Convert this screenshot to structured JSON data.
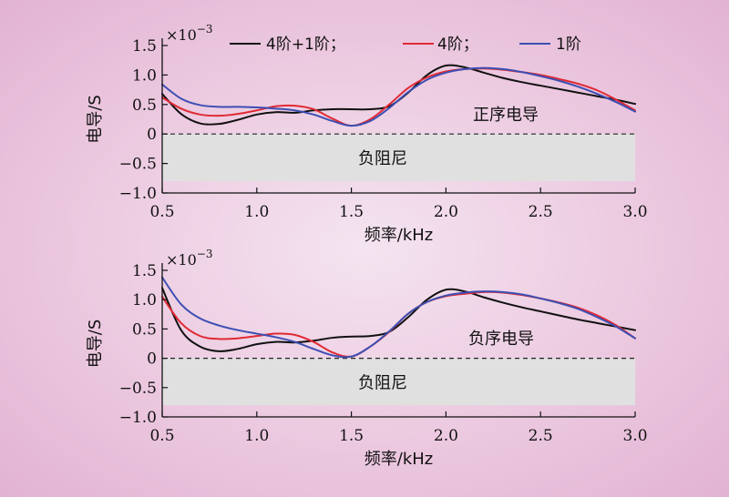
{
  "chart_data": [
    {
      "type": "line",
      "xlabel": "频率/kHz",
      "ylabel": "电导/S",
      "xlim": [
        0.5,
        3.0
      ],
      "ylim": [
        -1.0,
        1.5
      ],
      "x_ticks": [
        "0.5",
        "1.0",
        "1.5",
        "2.0",
        "2.5",
        "3.0"
      ],
      "y_ticks": [
        "1.5",
        "1.0",
        "0.5",
        "0",
        "−0.5",
        "−1.0"
      ],
      "y_multiplier": "×10",
      "y_multiplier_exp": "−3",
      "positive_label": "正序电导",
      "negative_region_label": "负阻尼",
      "negative_region": [
        -0.8,
        0
      ],
      "zero_line": true,
      "series": [
        {
          "name": "4阶+1阶；",
          "color": "#111111",
          "x": [
            0.5,
            0.6,
            0.7,
            0.8,
            0.9,
            1.0,
            1.1,
            1.2,
            1.3,
            1.4,
            1.5,
            1.6,
            1.7,
            1.8,
            1.9,
            2.0,
            2.1,
            2.2,
            2.3,
            2.4,
            2.5,
            2.6,
            2.7,
            2.8,
            2.9,
            3.0
          ],
          "y": [
            0.68,
            0.34,
            0.18,
            0.17,
            0.24,
            0.33,
            0.37,
            0.36,
            0.4,
            0.42,
            0.42,
            0.42,
            0.47,
            0.7,
            1.0,
            1.16,
            1.13,
            1.04,
            0.95,
            0.88,
            0.82,
            0.76,
            0.7,
            0.64,
            0.58,
            0.51
          ]
        },
        {
          "name": "4阶；",
          "color": "#e02a34",
          "x": [
            0.5,
            0.6,
            0.7,
            0.8,
            0.9,
            1.0,
            1.1,
            1.2,
            1.3,
            1.4,
            1.5,
            1.6,
            1.7,
            1.8,
            1.9,
            2.0,
            2.1,
            2.2,
            2.3,
            2.4,
            2.5,
            2.6,
            2.7,
            2.8,
            2.9,
            3.0
          ],
          "y": [
            0.62,
            0.43,
            0.33,
            0.31,
            0.34,
            0.4,
            0.47,
            0.48,
            0.42,
            0.26,
            0.14,
            0.25,
            0.5,
            0.78,
            0.96,
            1.06,
            1.1,
            1.11,
            1.09,
            1.05,
            1.0,
            0.93,
            0.85,
            0.74,
            0.58,
            0.4
          ]
        },
        {
          "name": "1阶",
          "color": "#3d4fb3",
          "x": [
            0.5,
            0.6,
            0.7,
            0.8,
            0.9,
            1.0,
            1.1,
            1.2,
            1.3,
            1.4,
            1.5,
            1.6,
            1.7,
            1.8,
            1.9,
            2.0,
            2.1,
            2.2,
            2.3,
            2.4,
            2.5,
            2.6,
            2.7,
            2.8,
            2.9,
            3.0
          ],
          "y": [
            0.84,
            0.6,
            0.49,
            0.46,
            0.46,
            0.45,
            0.43,
            0.4,
            0.33,
            0.22,
            0.14,
            0.22,
            0.44,
            0.71,
            0.92,
            1.04,
            1.1,
            1.12,
            1.1,
            1.05,
            0.98,
            0.9,
            0.8,
            0.68,
            0.54,
            0.38
          ]
        }
      ]
    },
    {
      "type": "line",
      "xlabel": "频率/kHz",
      "ylabel": "电导/S",
      "xlim": [
        0.5,
        3.0
      ],
      "ylim": [
        -1.0,
        1.5
      ],
      "x_ticks": [
        "0.5",
        "1.0",
        "1.5",
        "2.0",
        "2.5",
        "3.0"
      ],
      "y_ticks": [
        "1.5",
        "1.0",
        "0.5",
        "0",
        "−0.5",
        "−1.0"
      ],
      "y_multiplier": "×10",
      "y_multiplier_exp": "−3",
      "positive_label": "负序电导",
      "negative_region_label": "负阻尼",
      "negative_region": [
        -0.8,
        0
      ],
      "zero_line": true,
      "series": [
        {
          "name": "4阶+1阶",
          "color": "#111111",
          "x": [
            0.5,
            0.6,
            0.7,
            0.8,
            0.9,
            1.0,
            1.1,
            1.2,
            1.3,
            1.4,
            1.5,
            1.6,
            1.7,
            1.8,
            1.9,
            2.0,
            2.1,
            2.2,
            2.3,
            2.4,
            2.5,
            2.6,
            2.7,
            2.8,
            2.9,
            3.0
          ],
          "y": [
            1.2,
            0.48,
            0.2,
            0.12,
            0.16,
            0.24,
            0.28,
            0.27,
            0.3,
            0.35,
            0.37,
            0.38,
            0.45,
            0.7,
            1.0,
            1.17,
            1.14,
            1.04,
            0.95,
            0.87,
            0.8,
            0.73,
            0.66,
            0.6,
            0.54,
            0.48
          ]
        },
        {
          "name": "4阶",
          "color": "#e02a34",
          "x": [
            0.5,
            0.6,
            0.7,
            0.8,
            0.9,
            1.0,
            1.1,
            1.2,
            1.3,
            1.4,
            1.5,
            1.6,
            1.7,
            1.8,
            1.9,
            2.0,
            2.1,
            2.2,
            2.3,
            2.4,
            2.5,
            2.6,
            2.7,
            2.8,
            2.9,
            3.0
          ],
          "y": [
            1.05,
            0.6,
            0.38,
            0.33,
            0.34,
            0.38,
            0.42,
            0.4,
            0.28,
            0.1,
            0.03,
            0.2,
            0.45,
            0.76,
            0.96,
            1.06,
            1.1,
            1.13,
            1.12,
            1.08,
            1.02,
            0.95,
            0.86,
            0.73,
            0.56,
            0.34
          ]
        },
        {
          "name": "1阶",
          "color": "#3d4fb3",
          "x": [
            0.5,
            0.6,
            0.7,
            0.8,
            0.9,
            1.0,
            1.1,
            1.2,
            1.3,
            1.4,
            1.5,
            1.6,
            1.7,
            1.8,
            1.9,
            2.0,
            2.1,
            2.2,
            2.3,
            2.4,
            2.5,
            2.6,
            2.7,
            2.8,
            2.9,
            3.0
          ],
          "y": [
            1.38,
            0.92,
            0.68,
            0.56,
            0.48,
            0.42,
            0.36,
            0.28,
            0.16,
            0.05,
            0.03,
            0.2,
            0.46,
            0.76,
            0.96,
            1.07,
            1.12,
            1.14,
            1.13,
            1.09,
            1.02,
            0.94,
            0.84,
            0.7,
            0.54,
            0.34
          ]
        }
      ]
    }
  ]
}
